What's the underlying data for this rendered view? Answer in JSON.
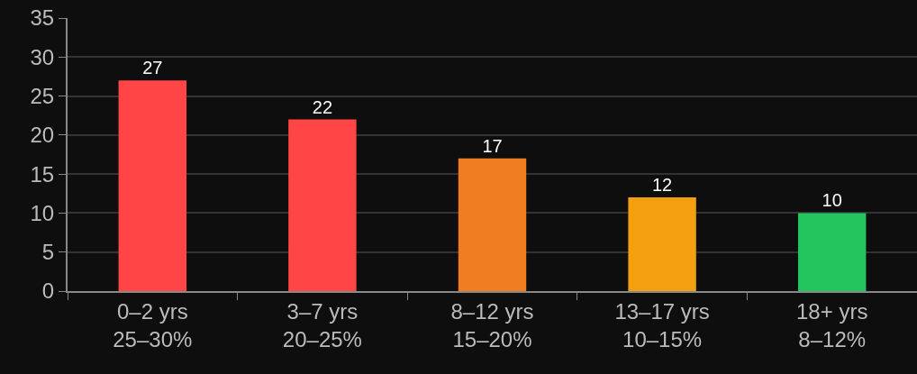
{
  "chart_data": {
    "type": "bar",
    "categories": [
      "0–2 yrs\n25–30%",
      "3–7 yrs\n20–25%",
      "8–12 yrs\n15–20%",
      "13–17 yrs\n10–15%",
      "18+ yrs\n8–12%"
    ],
    "values": [
      27,
      22,
      17,
      12,
      10
    ],
    "colors": [
      "#ff4545",
      "#ff4545",
      "#f07d22",
      "#f39f0f",
      "#22c55e"
    ],
    "ylim": [
      0,
      35
    ],
    "yticks": [
      0,
      5,
      10,
      15,
      20,
      25,
      30,
      35
    ],
    "grid": "y",
    "data_labels": true
  }
}
